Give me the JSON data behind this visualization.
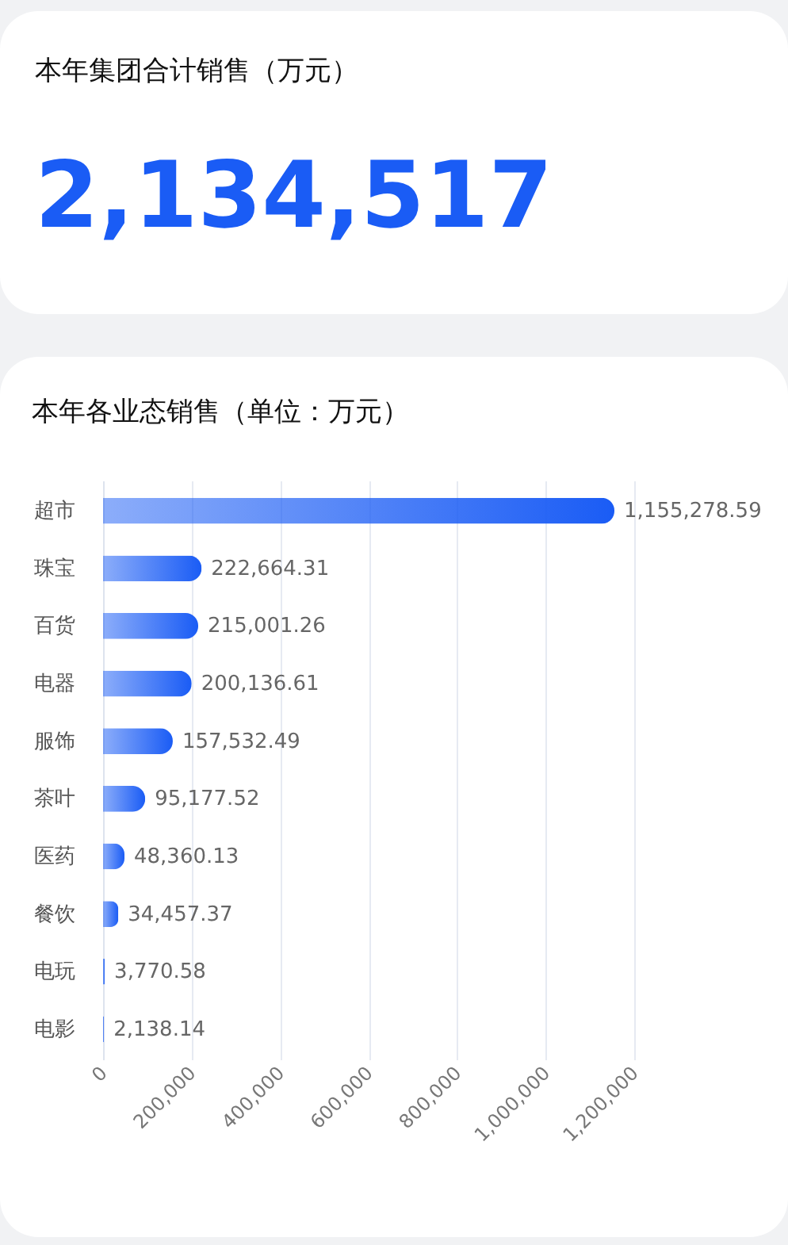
{
  "chart_data": [
    {
      "type": "other",
      "title": "本年集团合计销售（万元）",
      "annotations": [
        "2,134,517"
      ]
    },
    {
      "type": "bar",
      "orientation": "horizontal",
      "title": "本年各业态销售（单位：万元）",
      "categories": [
        "超市",
        "珠宝",
        "百货",
        "电器",
        "服饰",
        "茶叶",
        "医药",
        "餐饮",
        "电玩",
        "电影"
      ],
      "values": [
        1155278.59,
        222664.31,
        215001.26,
        200136.61,
        157532.49,
        95177.52,
        48360.13,
        34457.37,
        3770.58,
        2138.14
      ],
      "value_labels": [
        "1,155,278.59",
        "222,664.31",
        "215,001.26",
        "200,136.61",
        "157,532.49",
        "95,177.52",
        "48,360.13",
        "34,457.37",
        "3,770.58",
        "2,138.14"
      ],
      "color": "#1a5cf5",
      "xlim": [
        0,
        1200000
      ],
      "xticks": [
        0,
        {
          "value": 200000,
          "label": "200,000"
        },
        {
          "value": 400000,
          "label": "400,000"
        },
        {
          "value": 600000,
          "label": "600,000"
        },
        {
          "value": 800000,
          "label": "800,000"
        },
        {
          "value": 1000000,
          "label": "1,000,000"
        },
        {
          "value": 1200000,
          "label": "1,200,000"
        }
      ],
      "grid": "x"
    }
  ]
}
